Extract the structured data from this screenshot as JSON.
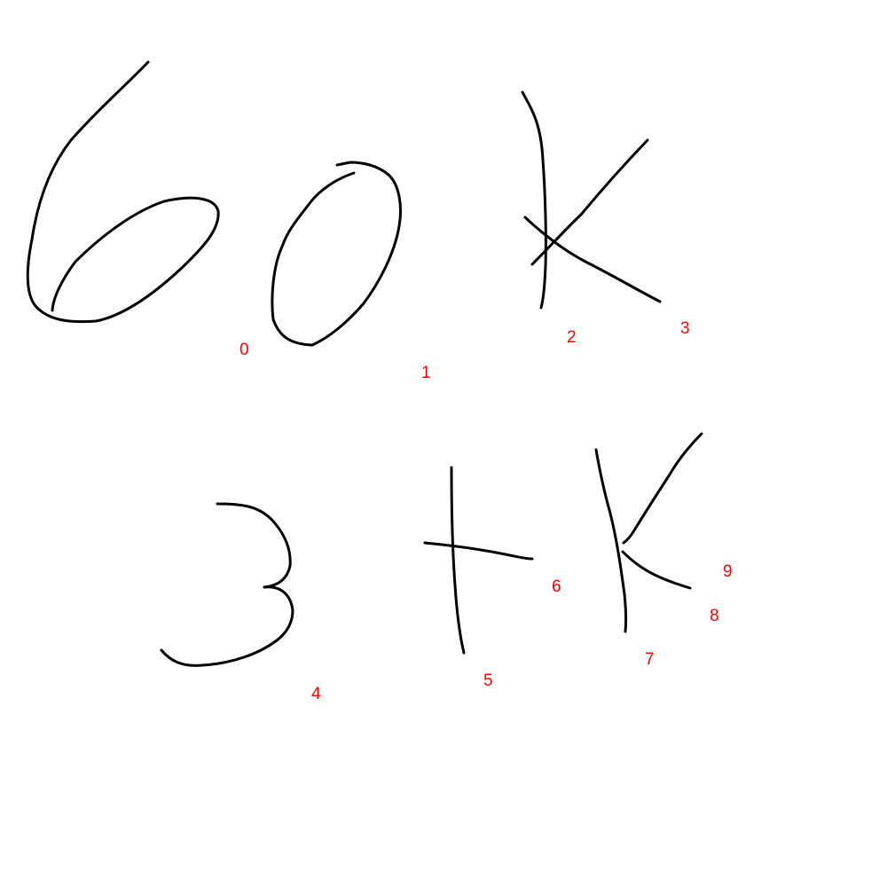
{
  "colors": {
    "background": "#ffffff",
    "stroke": "#000000",
    "label": "#ff0000"
  },
  "strokes": [
    {
      "id": "0",
      "label": "0"
    },
    {
      "id": "1",
      "label": "1"
    },
    {
      "id": "2",
      "label": "2"
    },
    {
      "id": "3",
      "label": "3"
    },
    {
      "id": "4",
      "label": "4"
    },
    {
      "id": "5",
      "label": "5"
    },
    {
      "id": "6",
      "label": "6"
    },
    {
      "id": "7",
      "label": "7"
    },
    {
      "id": "8",
      "label": "8"
    },
    {
      "id": "9",
      "label": "9"
    }
  ]
}
